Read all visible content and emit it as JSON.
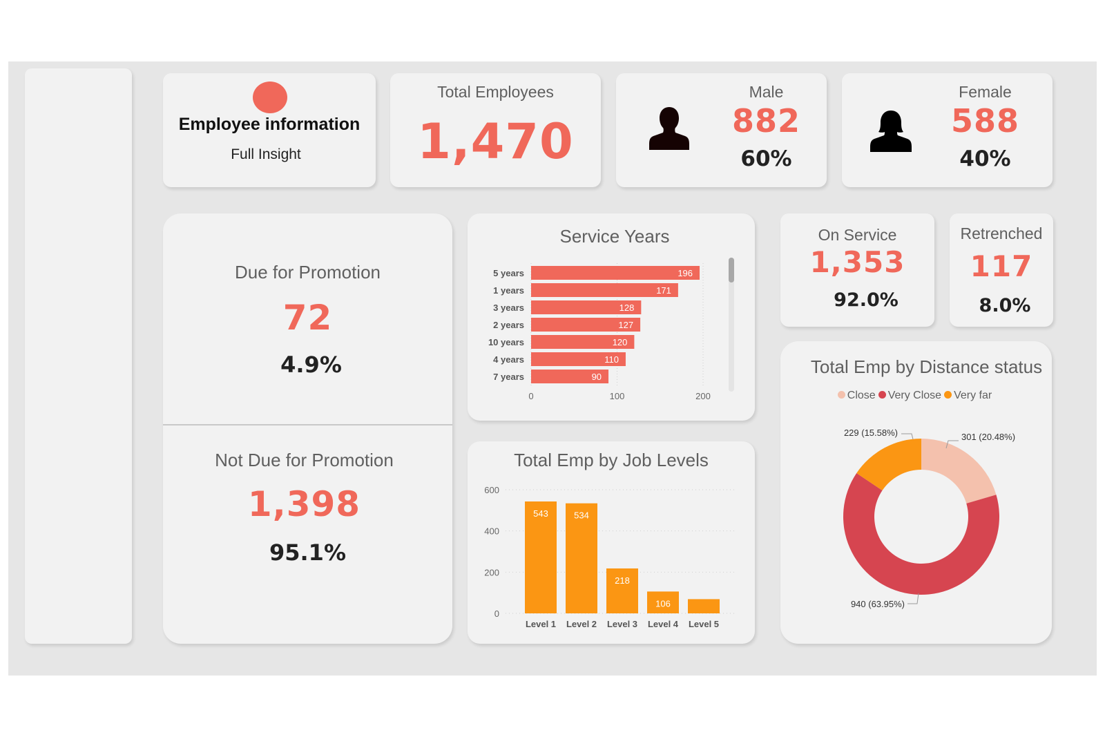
{
  "header": {
    "title": "Employee information",
    "subtitle": "Full Insight",
    "accent": "#f0685a"
  },
  "kpis": {
    "total": {
      "label": "Total Employees",
      "value": "1,470"
    },
    "male": {
      "label": "Male",
      "value": "882",
      "pct": "60%",
      "icon": "male-person-icon"
    },
    "female": {
      "label": "Female",
      "value": "588",
      "pct": "40%",
      "icon": "female-person-icon"
    },
    "due": {
      "label": "Due for Promotion",
      "value": "72",
      "pct": "4.9%"
    },
    "not_due": {
      "label": "Not Due for Promotion",
      "value": "1,398",
      "pct": "95.1%"
    },
    "on_service": {
      "label": "On Service",
      "value": "1,353",
      "pct": "92.0%"
    },
    "retrenched": {
      "label": "Retrenched",
      "value": "117",
      "pct": "8.0%"
    }
  },
  "chart_data": [
    {
      "type": "bar",
      "orientation": "horizontal",
      "title": "Service Years",
      "categories": [
        "5 years",
        "1 years",
        "3 years",
        "2 years",
        "10 years",
        "4 years",
        "7 years"
      ],
      "values": [
        196,
        171,
        128,
        127,
        120,
        110,
        90
      ],
      "xlim": [
        0,
        200
      ],
      "xticks": [
        "0",
        "100",
        "200"
      ],
      "color": "#f0685a",
      "grid": true
    },
    {
      "type": "bar",
      "title": "Total Emp by Job Levels",
      "categories": [
        "Level 1",
        "Level 2",
        "Level 3",
        "Level 4",
        "Level 5"
      ],
      "values": [
        543,
        534,
        218,
        106,
        69
      ],
      "labels": [
        "543",
        "534",
        "218",
        "106",
        ""
      ],
      "ylim": [
        0,
        600
      ],
      "yticks": [
        "0",
        "200",
        "400",
        "600"
      ],
      "color": "#fb9613",
      "grid": true
    },
    {
      "type": "pie",
      "donut": true,
      "title": "Total Emp by Distance status",
      "legend_position": "top",
      "slices": [
        {
          "name": "Close",
          "value": 301,
          "label": "301 (20.48%)",
          "color": "#f4c1ad"
        },
        {
          "name": "Very Close",
          "value": 940,
          "label": "940 (63.95%)",
          "color": "#d64550"
        },
        {
          "name": "Very far",
          "value": 229,
          "label": "229 (15.58%)",
          "color": "#fb9613"
        }
      ]
    }
  ]
}
